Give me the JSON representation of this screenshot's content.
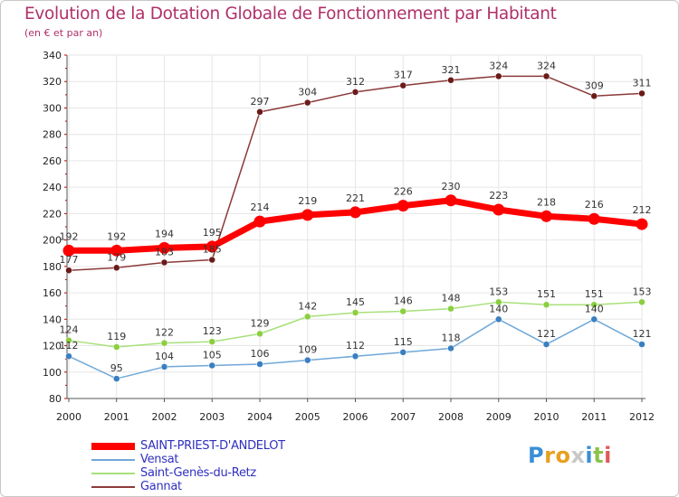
{
  "header": {
    "title": "Evolution de la Dotation Globale de Fonctionnement par Habitant",
    "subtitle": "(en € et par an)"
  },
  "logo": {
    "text": "Proxiti",
    "letters": [
      "P",
      "r",
      "o",
      "x",
      "i",
      "t",
      "i"
    ],
    "colors": [
      "#3a8fd6",
      "#e8a020",
      "#e8a020",
      "#c8c8c8",
      "#3a8fd6",
      "#8bc34a",
      "#e05a5a"
    ]
  },
  "chart_data": {
    "type": "line",
    "title": "Evolution de la Dotation Globale de Fonctionnement par Habitant",
    "subtitle": "(en € et par an)",
    "xlabel": "",
    "ylabel": "",
    "ylim": [
      80,
      340
    ],
    "yticks": [
      80,
      100,
      120,
      140,
      160,
      180,
      200,
      220,
      240,
      260,
      280,
      300,
      320,
      340
    ],
    "grid": true,
    "categories": [
      "2000",
      "2001",
      "2002",
      "2003",
      "2004",
      "2005",
      "2006",
      "2007",
      "2008",
      "2009",
      "2010",
      "2011",
      "2012"
    ],
    "legend_position": "bottom-left",
    "series": [
      {
        "name": "Gannat",
        "color": "#8b3a3a",
        "marker": "#6b1a1a",
        "values": [
          177,
          179,
          183,
          185,
          297,
          304,
          312,
          317,
          321,
          324,
          324,
          309,
          311
        ]
      },
      {
        "name": "Saint-Genès-du-Retz",
        "color": "#a8e07a",
        "marker": "#8bcf3f",
        "values": [
          124,
          119,
          122,
          123,
          129,
          142,
          145,
          146,
          148,
          153,
          151,
          151,
          153
        ]
      },
      {
        "name": "Vensat",
        "color": "#6fa8d8",
        "marker": "#3a7fc0",
        "values": [
          112,
          95,
          104,
          105,
          106,
          109,
          112,
          115,
          118,
          140,
          121,
          140,
          121
        ]
      },
      {
        "name": "SAINT-PRIEST-D'ANDELOT",
        "color": "#ff0000",
        "marker": "#ff0000",
        "values": [
          192,
          192,
          194,
          195,
          214,
          219,
          221,
          226,
          230,
          223,
          218,
          216,
          212
        ]
      }
    ]
  },
  "legend": {
    "items": [
      {
        "label": "SAINT-PRIEST-D'ANDELOT",
        "color": "#ff0000",
        "text_color": "#3030c0"
      },
      {
        "label": "Vensat",
        "color": "#6fa8d8",
        "text_color": "#3030c0"
      },
      {
        "label": "Saint-Genès-du-Retz",
        "color": "#a8e07a",
        "text_color": "#3030c0"
      },
      {
        "label": "Gannat",
        "color": "#8b3a3a",
        "text_color": "#3030c0"
      }
    ]
  }
}
